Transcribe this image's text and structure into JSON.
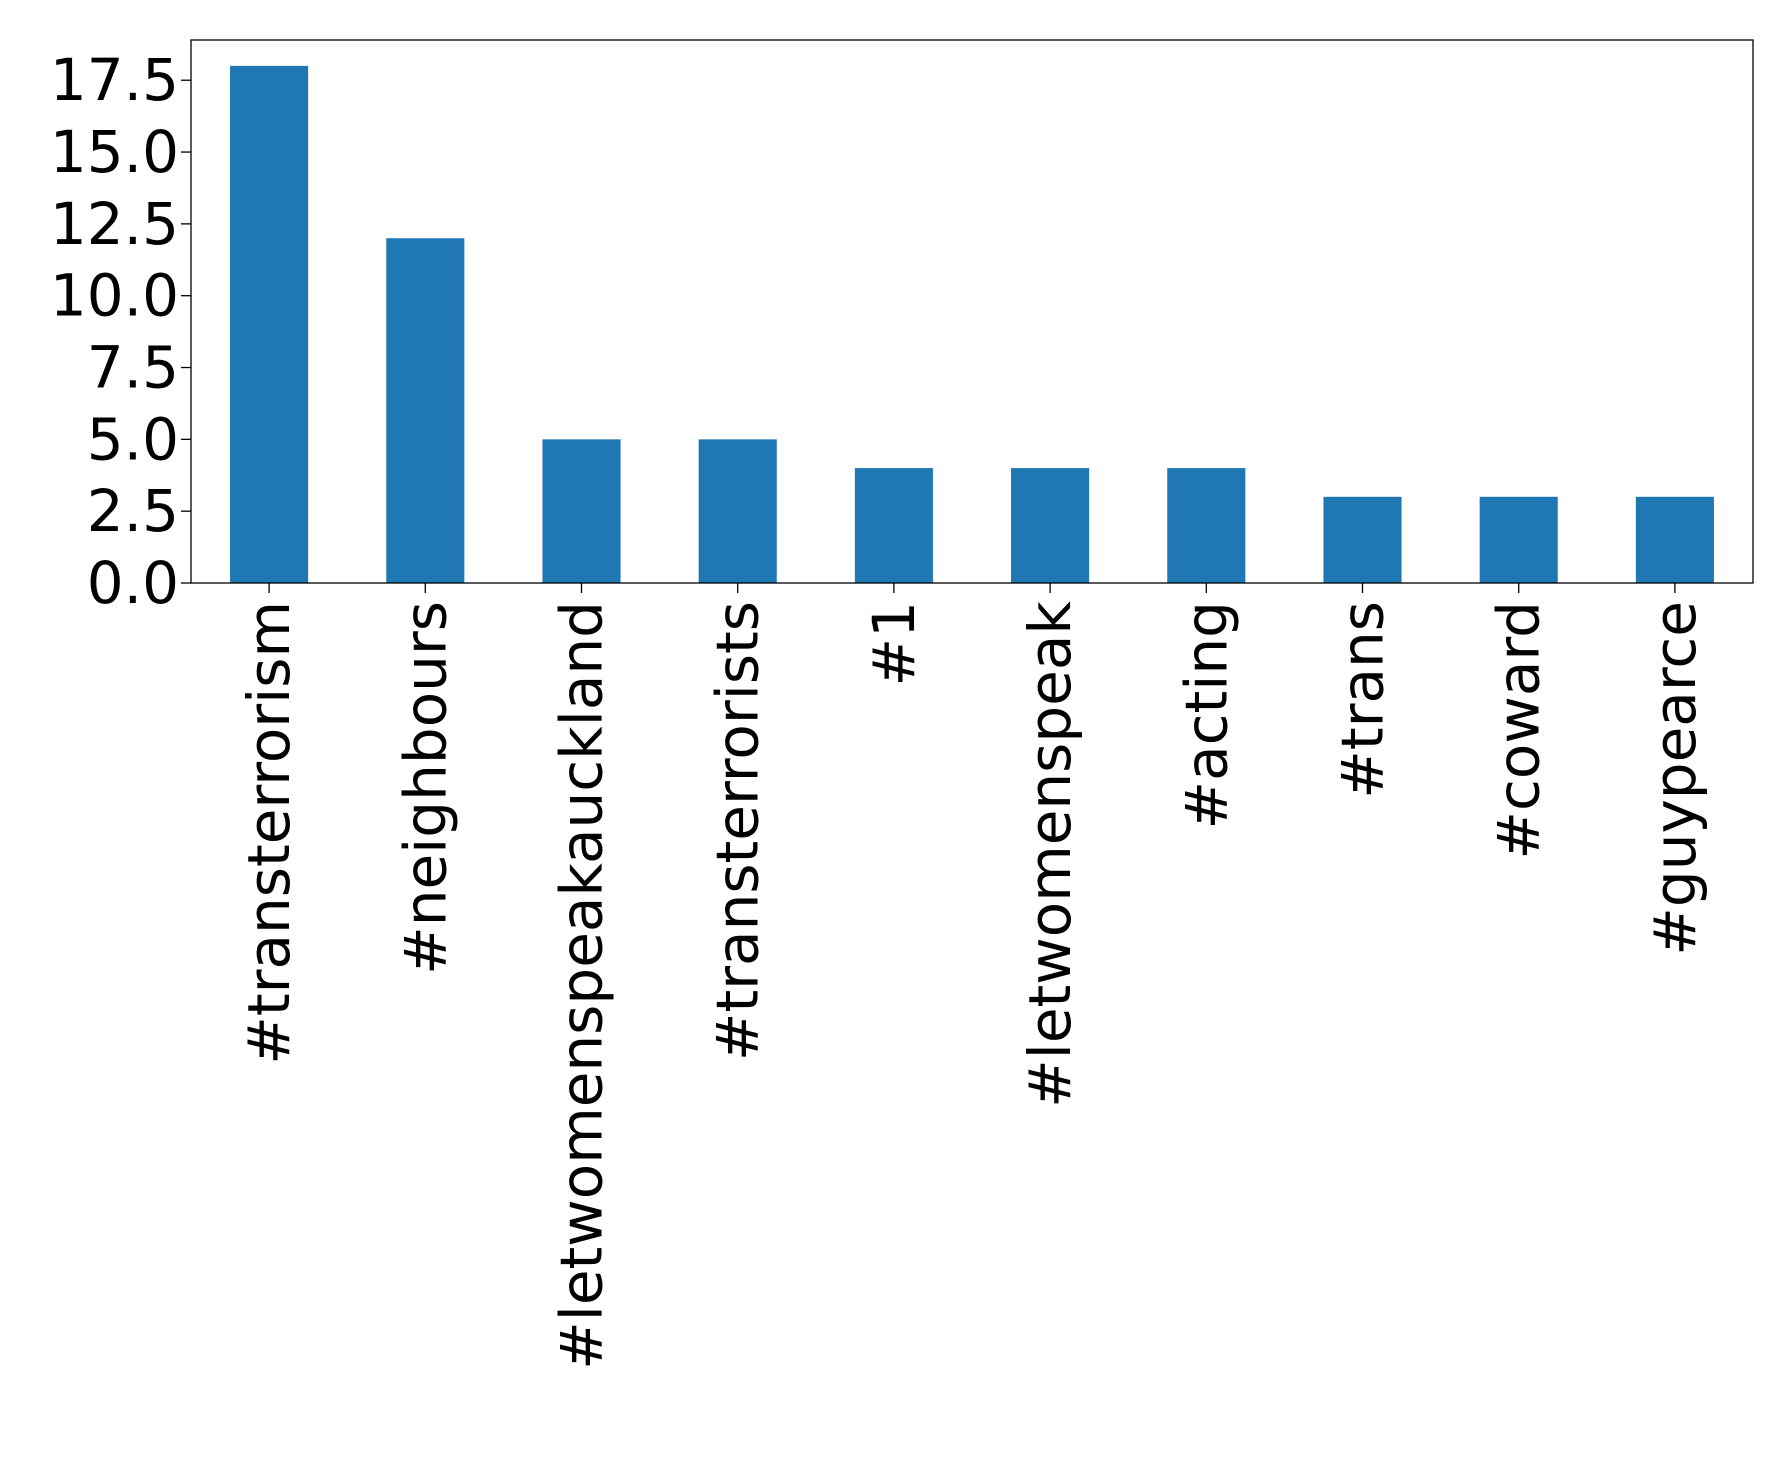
{
  "chart_data": {
    "type": "bar",
    "categories": [
      "#transterrorism",
      "#neighbours",
      "#letwomenspeakauckland",
      "#transterrorists",
      "#1",
      "#letwomenspeak",
      "#acting",
      "#trans",
      "#coward",
      "#guypearce"
    ],
    "values": [
      18,
      12,
      5,
      5,
      4,
      4,
      4,
      3,
      3,
      3
    ],
    "title": "",
    "xlabel": "",
    "ylabel": "",
    "ylim": [
      0,
      18.9
    ],
    "yticks": [
      0.0,
      2.5,
      5.0,
      7.5,
      10.0,
      12.5,
      15.0,
      17.5
    ],
    "ytick_labels": [
      "0.0",
      "2.5",
      "5.0",
      "7.5",
      "10.0",
      "12.5",
      "15.0",
      "17.5"
    ],
    "grid": false,
    "legend": "none",
    "bar_color": "#1f77b4"
  }
}
